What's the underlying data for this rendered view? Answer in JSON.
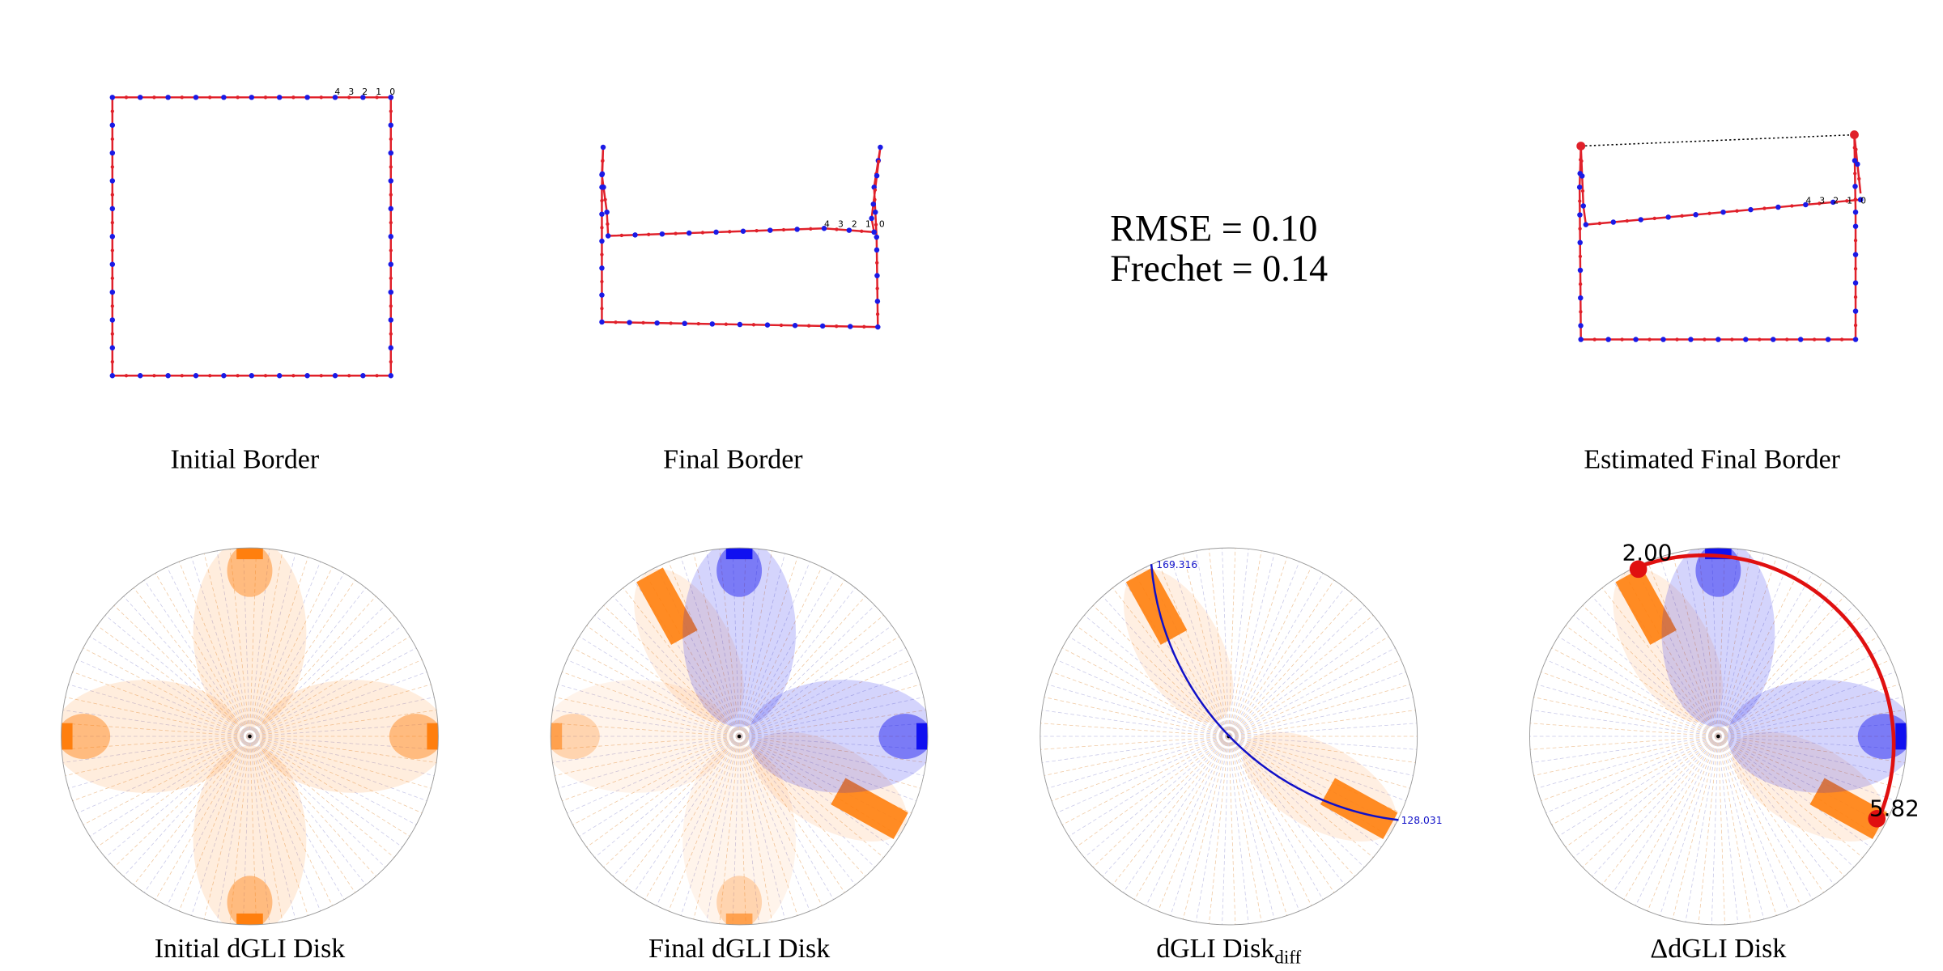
{
  "borders": [
    {
      "title": "Initial Border",
      "index_labels": [
        "4",
        "3",
        "2",
        "1",
        "0"
      ]
    },
    {
      "title": "Final Border",
      "index_labels": [
        "4",
        "3",
        "2",
        "1",
        "0"
      ]
    },
    {
      "title": "Estimated Final Border",
      "index_labels": [
        "4",
        "3",
        "2",
        "1",
        "0"
      ]
    }
  ],
  "metrics": [
    "RMSE = 0.10",
    "Frechet = 0.14"
  ],
  "disks": [
    {
      "title": "Initial dGLI Disk"
    },
    {
      "title": "Final dGLI Disk"
    },
    {
      "title": "dGLI Disk",
      "subscript": "diff",
      "arc_labels": [
        "169.316",
        "128.031"
      ]
    },
    {
      "title": "ΔdGLI Disk",
      "arc_labels": [
        "2.00",
        "5.82"
      ]
    }
  ]
}
